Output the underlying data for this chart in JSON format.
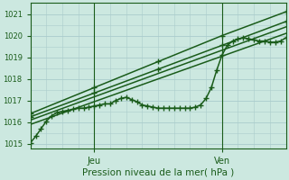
{
  "xlabel": "Pression niveau de la mer( hPa )",
  "bg_color": "#cce8e0",
  "grid_color": "#aacccc",
  "line_color": "#1a5c1a",
  "ylim": [
    1014.8,
    1021.5
  ],
  "xlim": [
    0,
    48
  ],
  "xtick_positions": [
    12,
    36
  ],
  "xtick_labels": [
    "Jeu",
    "Ven"
  ],
  "ytick_positions": [
    1015,
    1016,
    1017,
    1018,
    1019,
    1020,
    1021
  ],
  "ytick_labels": [
    "1015",
    "1016",
    "1017",
    "1018",
    "1019",
    "1020",
    "1021"
  ],
  "vline_positions": [
    12,
    36
  ],
  "series": [
    {
      "comment": "wavy line with + markers - stays flat ~1016-1017 then sharp rise at x~32",
      "x": [
        0,
        1,
        2,
        3,
        4,
        5,
        6,
        7,
        8,
        9,
        10,
        11,
        12,
        13,
        14,
        15,
        16,
        17,
        18,
        19,
        20,
        21,
        22,
        23,
        24,
        25,
        26,
        27,
        28,
        29,
        30,
        31,
        32,
        33,
        34,
        35,
        36,
        37,
        38,
        39,
        40,
        41,
        42,
        43,
        44,
        45,
        46,
        47,
        48
      ],
      "y": [
        1015.05,
        1015.35,
        1015.7,
        1016.05,
        1016.3,
        1016.45,
        1016.5,
        1016.55,
        1016.6,
        1016.65,
        1016.65,
        1016.7,
        1016.75,
        1016.8,
        1016.85,
        1016.85,
        1017.0,
        1017.1,
        1017.15,
        1017.05,
        1016.95,
        1016.8,
        1016.75,
        1016.7,
        1016.65,
        1016.65,
        1016.65,
        1016.65,
        1016.65,
        1016.65,
        1016.65,
        1016.7,
        1016.8,
        1017.1,
        1017.6,
        1018.4,
        1019.1,
        1019.55,
        1019.75,
        1019.85,
        1019.9,
        1019.85,
        1019.8,
        1019.75,
        1019.75,
        1019.7,
        1019.7,
        1019.75,
        1019.9
      ],
      "marker": "+",
      "markersize": 4,
      "linewidth": 1.1,
      "markevery": 1
    },
    {
      "comment": "straight line 1 - lowest slope",
      "x": [
        0,
        48
      ],
      "y": [
        1015.9,
        1020.1
      ],
      "marker": null,
      "markersize": 0,
      "linewidth": 1.1,
      "markevery": 1
    },
    {
      "comment": "straight line 2",
      "x": [
        0,
        48
      ],
      "y": [
        1016.1,
        1020.4
      ],
      "marker": null,
      "markersize": 0,
      "linewidth": 1.1,
      "markevery": 1
    },
    {
      "comment": "straight line 3 with + markers at ends",
      "x": [
        0,
        12,
        24,
        36,
        48
      ],
      "y": [
        1016.25,
        1017.35,
        1018.45,
        1019.55,
        1020.65
      ],
      "marker": "+",
      "markersize": 4,
      "linewidth": 1.1,
      "markevery": 1
    },
    {
      "comment": "straight line 4 - highest slope with + markers",
      "x": [
        0,
        12,
        24,
        36,
        48
      ],
      "y": [
        1016.4,
        1017.6,
        1018.8,
        1020.0,
        1021.1
      ],
      "marker": "+",
      "markersize": 4,
      "linewidth": 1.1,
      "markevery": 1
    }
  ]
}
